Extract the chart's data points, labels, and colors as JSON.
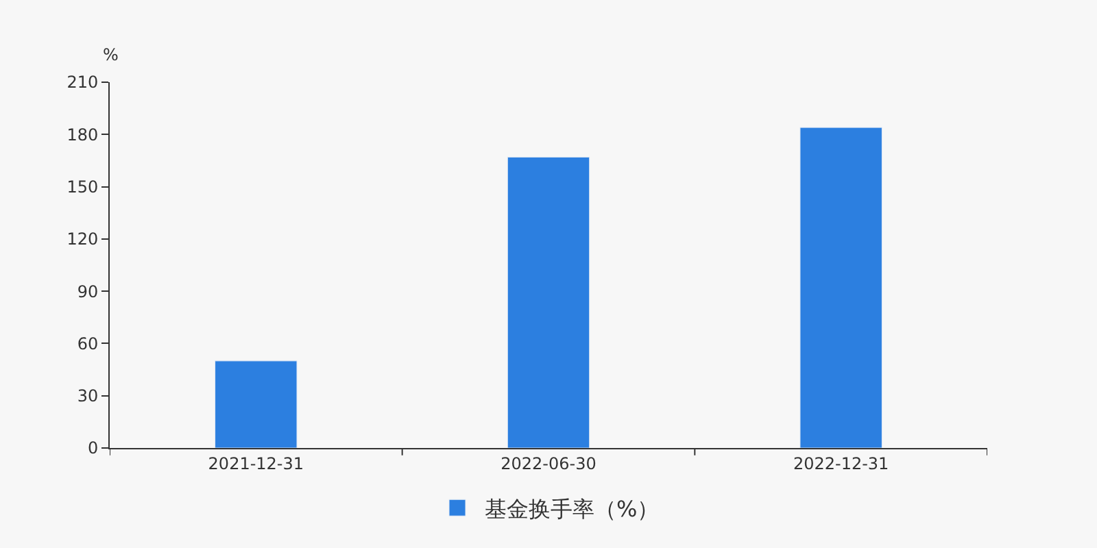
{
  "chart_data": {
    "type": "bar",
    "ylabel": "%",
    "categories": [
      "2021-12-31",
      "2022-06-30",
      "2022-12-31"
    ],
    "series": [
      {
        "name": "基金换手率（%）",
        "color": "#2c7fe0",
        "values": [
          50,
          167,
          184
        ]
      }
    ],
    "ylim": [
      0,
      210
    ],
    "yticks": [
      0,
      30,
      60,
      90,
      120,
      150,
      180,
      210
    ],
    "grid": false,
    "legend": "bottom"
  }
}
